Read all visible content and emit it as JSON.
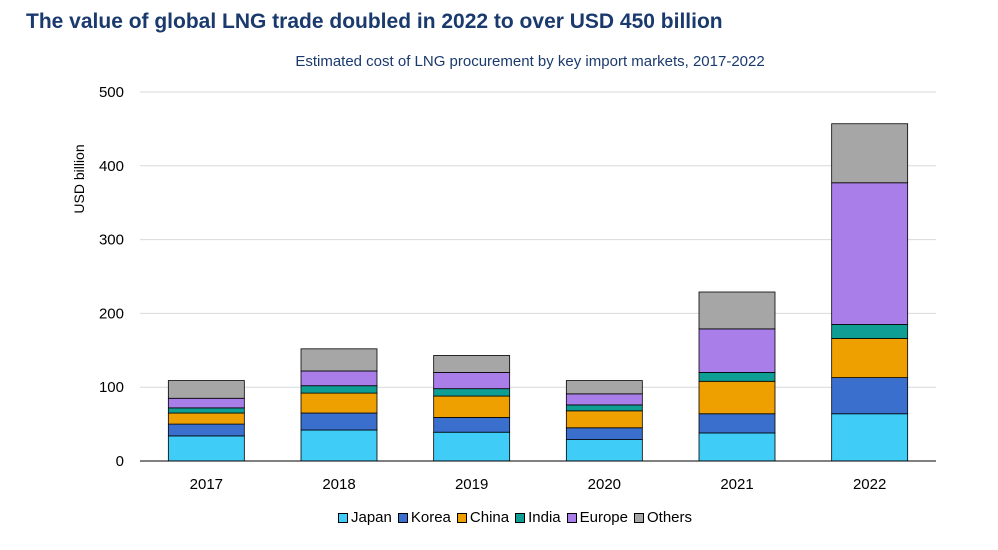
{
  "title": "The value of global LNG trade doubled in 2022 to over USD 450 billion",
  "chart_data": {
    "type": "bar",
    "stacked": true,
    "subtitle": "Estimated cost of LNG procurement by key import markets, 2017-2022",
    "ylabel": "USD billion",
    "xlabel": "",
    "ylim": [
      0,
      500
    ],
    "yticks": [
      0,
      100,
      200,
      300,
      400,
      500
    ],
    "grid": true,
    "legend_position": "bottom",
    "categories": [
      "2017",
      "2018",
      "2019",
      "2020",
      "2021",
      "2022"
    ],
    "series": [
      {
        "name": "Japan",
        "color": "#3fcdf7",
        "values": [
          34,
          42,
          39,
          29,
          38,
          64
        ]
      },
      {
        "name": "Korea",
        "color": "#3a6fce",
        "values": [
          16,
          23,
          20,
          16,
          26,
          49
        ]
      },
      {
        "name": "China",
        "color": "#eea000",
        "values": [
          15,
          27,
          29,
          23,
          44,
          53
        ]
      },
      {
        "name": "India",
        "color": "#0f9e94",
        "values": [
          7,
          10,
          10,
          8,
          12,
          19
        ]
      },
      {
        "name": "Europe",
        "color": "#a97ee8",
        "values": [
          13,
          20,
          22,
          15,
          59,
          192
        ]
      },
      {
        "name": "Others",
        "color": "#a6a6a6",
        "values": [
          24,
          30,
          23,
          18,
          50,
          80
        ]
      }
    ]
  }
}
